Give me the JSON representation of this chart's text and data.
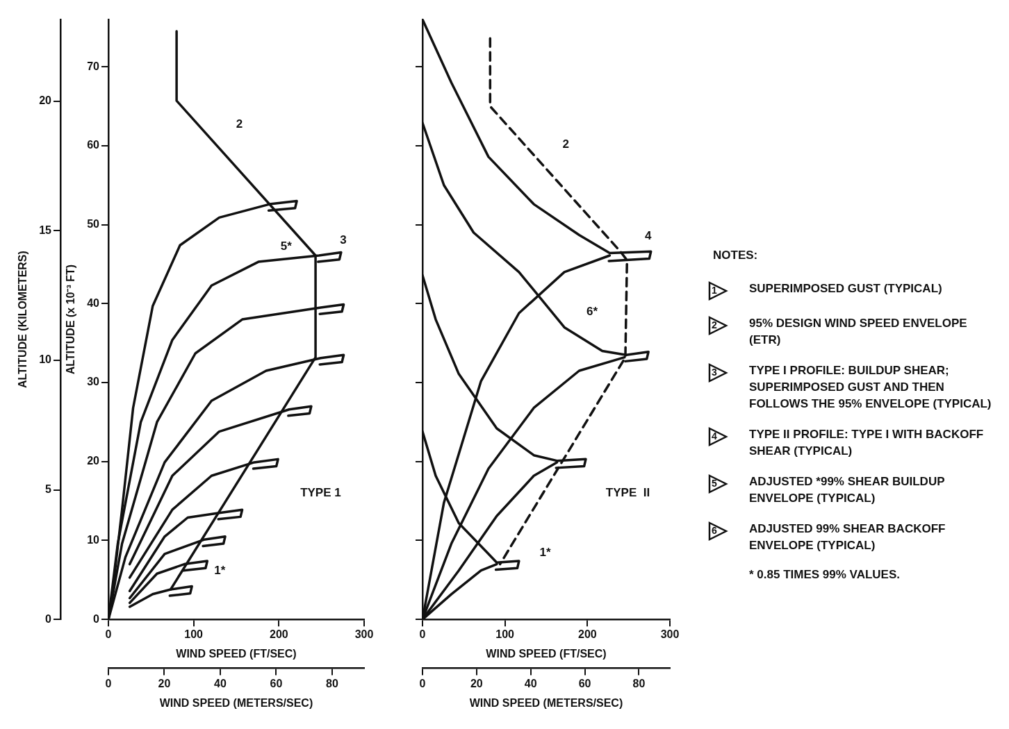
{
  "chart_data": [
    {
      "type": "line",
      "title": "TYPE 1",
      "xlabel": "WIND SPEED (FT/SEC)",
      "x2label": "WIND SPEED (METERS/SEC)",
      "ylabel": "ALTITUDE (x 10⁻³ FT)",
      "y2label": "ALTITUDE (KILOMETERS)",
      "xlim": [
        0,
        300
      ],
      "xticks": [
        0,
        100,
        200,
        300
      ],
      "x2lim": [
        0,
        91.44
      ],
      "x2ticks": [
        0,
        20,
        40,
        60,
        80
      ],
      "ylim": [
        0,
        76
      ],
      "yticks": [
        0,
        10,
        20,
        30,
        40,
        50,
        60,
        70
      ],
      "y2lim": [
        0,
        23.16
      ],
      "y2ticks": [
        0,
        5,
        10,
        15,
        20
      ],
      "marker": "none",
      "series": [
        {
          "color": "#111111",
          "x": [
            80,
            80,
            243,
            243,
            73
          ],
          "values": [
            74.5,
            65.7,
            46.1,
            33.2,
            3.8
          ]
        },
        {
          "color": "#111111",
          "x": [
            0,
            4,
            16,
            29,
            52,
            84,
            130,
            189,
            221,
            219,
            188
          ],
          "values": [
            0,
            2.7,
            13.9,
            26.8,
            39.7,
            47.4,
            50.9,
            52.6,
            53,
            52.1,
            51.8
          ]
        },
        {
          "color": "#111111",
          "x": [
            0,
            11,
            38,
            75,
            121,
            176,
            247,
            273,
            271,
            246
          ],
          "values": [
            0,
            9.6,
            25,
            35.4,
            42.3,
            45.3,
            46.1,
            46.5,
            45.6,
            45.3
          ]
        },
        {
          "color": "#111111",
          "x": [
            0,
            16,
            57,
            102,
            157,
            249,
            276,
            274,
            248
          ],
          "values": [
            0,
            9.6,
            25,
            33.7,
            38,
            39.5,
            39.9,
            39,
            38.7
          ]
        },
        {
          "color": "#111111",
          "x": [
            0,
            20,
            66,
            121,
            185,
            249,
            276,
            274,
            248
          ],
          "values": [
            0,
            7.9,
            19.9,
            27.7,
            31.5,
            33.1,
            33.5,
            32.6,
            32.3
          ]
        },
        {
          "color": "#111111",
          "x": [
            25,
            75,
            130,
            212,
            238,
            236,
            211
          ],
          "values": [
            7,
            18.2,
            23.8,
            26.6,
            27,
            26.1,
            25.8
          ]
        },
        {
          "color": "#111111",
          "x": [
            25,
            75,
            121,
            171,
            199,
            197,
            170
          ],
          "values": [
            5.3,
            13.9,
            18.2,
            19.9,
            20.3,
            19.4,
            19.1
          ]
        },
        {
          "color": "#111111",
          "x": [
            25,
            66,
            93,
            130,
            157,
            155,
            129
          ],
          "values": [
            3.6,
            10.5,
            12.9,
            13.5,
            13.9,
            13,
            12.7
          ]
        },
        {
          "color": "#111111",
          "x": [
            25,
            66,
            112,
            137,
            135,
            111
          ],
          "values": [
            2.7,
            8.3,
            10.1,
            10.5,
            9.6,
            9.3
          ]
        },
        {
          "color": "#111111",
          "x": [
            25,
            57,
            89,
            116,
            114,
            88
          ],
          "values": [
            2.1,
            5.8,
            7,
            7.4,
            6.5,
            6.2
          ]
        },
        {
          "color": "#111111",
          "x": [
            25,
            52,
            73,
            98,
            96,
            72
          ],
          "values": [
            1.6,
            3.2,
            3.8,
            4.2,
            3.3,
            3
          ]
        }
      ],
      "annotations": [
        {
          "text": "2",
          "x": 121,
          "y": 60.8
        },
        {
          "text": "3",
          "x": 243,
          "y": 46.1
        },
        {
          "text": "5*",
          "x": 176,
          "y": 45.3
        },
        {
          "text": "1*",
          "x": 98,
          "y": 4.2
        }
      ]
    },
    {
      "type": "line",
      "title": "TYPE  II",
      "xlabel": "WIND SPEED (FT/SEC)",
      "x2label": "WIND SPEED (METERS/SEC)",
      "xlim": [
        0,
        300
      ],
      "xticks": [
        0,
        100,
        200,
        300
      ],
      "x2lim": [
        0,
        91.44
      ],
      "x2ticks": [
        0,
        20,
        40,
        60,
        80
      ],
      "ylim": [
        0,
        76
      ],
      "yticks": [
        0,
        10,
        20,
        30,
        40,
        50,
        60,
        70
      ],
      "tick_labels": "x",
      "marker": "none",
      "series": [
        {
          "color": "#111111",
          "line_style": "dashed",
          "x": [
            82,
            82,
            240,
            248,
            246,
            94
          ],
          "values": [
            73.6,
            65,
            46.6,
            45.5,
            33.2,
            7
          ]
        },
        {
          "color": "#111111",
          "x": [
            0,
            35,
            80,
            135,
            190,
            227,
            277,
            275,
            226
          ],
          "values": [
            76,
            68,
            58.6,
            52.6,
            48.7,
            46.4,
            46.6,
            45.7,
            45.4
          ]
        },
        {
          "color": "#111111",
          "x": [
            0,
            26,
            62,
            117,
            172,
            218,
            247,
            274,
            272,
            246
          ],
          "values": [
            62.9,
            55,
            49,
            44,
            37,
            34,
            33.5,
            33.9,
            33,
            32.7
          ]
        },
        {
          "color": "#111111",
          "x": [
            0,
            16,
            44,
            90,
            135,
            163,
            198,
            196,
            162
          ],
          "values": [
            43.6,
            38,
            31.1,
            24.2,
            20.8,
            20.1,
            20.3,
            19.4,
            19.2
          ]
        },
        {
          "color": "#111111",
          "x": [
            0,
            16,
            44,
            80,
            90,
            117,
            115,
            89
          ],
          "values": [
            23.8,
            18.2,
            12.2,
            8.3,
            7.2,
            7.4,
            6.5,
            6.3
          ]
        },
        {
          "color": "#111111",
          "x": [
            0,
            26,
            71,
            117,
            172,
            227
          ],
          "values": [
            0,
            14.8,
            30.2,
            38.8,
            44,
            46.1
          ]
        },
        {
          "color": "#111111",
          "x": [
            0,
            35,
            80,
            135,
            190,
            245
          ],
          "values": [
            0,
            9.6,
            19.1,
            26.8,
            31.5,
            33.2
          ]
        },
        {
          "color": "#111111",
          "x": [
            0,
            44,
            90,
            135,
            163
          ],
          "values": [
            0,
            6.2,
            13.1,
            18.2,
            19.9
          ]
        },
        {
          "color": "#111111",
          "x": [
            0,
            35,
            71,
            90
          ],
          "values": [
            0,
            3.2,
            6.2,
            7
          ]
        }
      ],
      "annotations": [
        {
          "text": "2",
          "x": 140,
          "y": 58.2
        },
        {
          "text": "4",
          "x": 240,
          "y": 46.6
        },
        {
          "text": "6*",
          "x": 172,
          "y": 37
        },
        {
          "text": "1*",
          "x": 115,
          "y": 6.5
        }
      ]
    },
    {
      "type": "other",
      "title": "NOTES:",
      "annotations": [
        "1",
        "SUPERIMPOSED GUST (TYPICAL)",
        "2",
        "95% DESIGN WIND SPEED ENVELOPE (ETR)",
        "3",
        "TYPE I PROFILE:  BUILDUP SHEAR; SUPERIMPOSED GUST AND THEN FOLLOWS THE 95% ENVELOPE (TYPICAL)",
        "4",
        "TYPE II PROFILE:  TYPE I WITH BACKOFF SHEAR (TYPICAL)",
        "5",
        "ADJUSTED *99% SHEAR BUILDUP ENVELOPE (TYPICAL)",
        "6",
        "ADJUSTED 99% SHEAR BACKOFF ENVELOPE (TYPICAL)",
        "* 0.85 TIMES 99% VALUES."
      ]
    }
  ]
}
